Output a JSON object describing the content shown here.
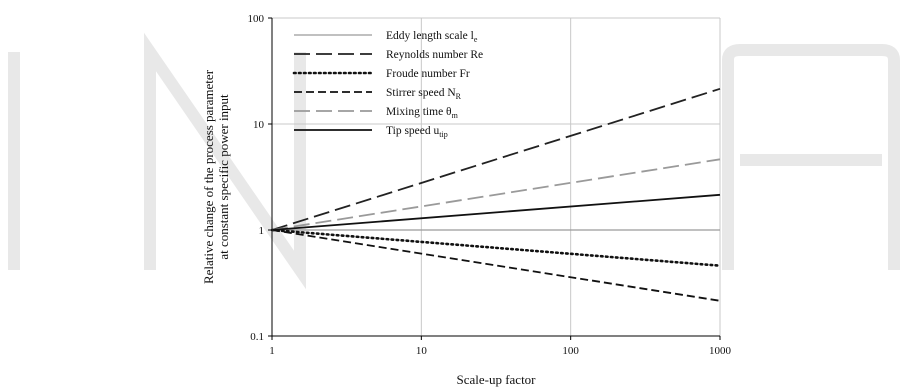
{
  "chart_data": {
    "type": "line",
    "xlabel": "Scale-up factor",
    "ylabel_line1": "Relative change of the process parameter",
    "ylabel_line2": "at constant specific power input",
    "xscale": "log",
    "yscale": "log",
    "xlim": [
      1,
      1000
    ],
    "ylim": [
      0.1,
      100
    ],
    "x_ticks": [
      "1",
      "10",
      "100",
      "1000"
    ],
    "y_ticks": [
      "0.1",
      "1",
      "10",
      "100"
    ],
    "grid": true,
    "legend_position": "top-left",
    "x": [
      1,
      1000
    ],
    "series": [
      {
        "name": "Eddy length scale l",
        "name_sub": "e",
        "values": [
          1,
          1
        ],
        "color": "#9a9a9a",
        "dash": "solid",
        "width": 1.3
      },
      {
        "name": "Reynolds number Re",
        "name_sub": "",
        "values": [
          1,
          21.5
        ],
        "color": "#222222",
        "dash": "long-dash",
        "width": 1.8
      },
      {
        "name": "Froude number Fr",
        "name_sub": "",
        "values": [
          1,
          0.46
        ],
        "color": "#111111",
        "dash": "dotted",
        "width": 2.6
      },
      {
        "name": "Stirrer speed N",
        "name_sub": "R",
        "values": [
          1,
          0.215
        ],
        "color": "#111111",
        "dash": "dashed",
        "width": 1.8
      },
      {
        "name": "Mixing time θ",
        "name_sub": "m",
        "values": [
          1,
          4.64
        ],
        "color": "#9a9a9a",
        "dash": "long-dash",
        "width": 1.8
      },
      {
        "name": "Tip speed u",
        "name_sub": "tip",
        "values": [
          1,
          2.15
        ],
        "color": "#111111",
        "dash": "solid",
        "width": 1.8
      }
    ]
  }
}
